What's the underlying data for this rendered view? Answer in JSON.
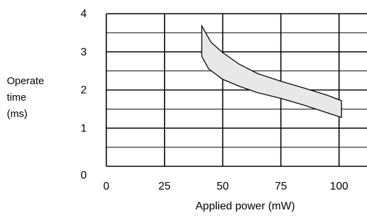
{
  "chart_data": {
    "type": "area",
    "title": "",
    "xlabel": "Applied power (mW)",
    "ylabel_lines": [
      "Operate",
      "time",
      "(ms)"
    ],
    "xlim": [
      0,
      112
    ],
    "ylim": [
      0,
      4
    ],
    "x_ticks": [
      "0",
      "25",
      "50",
      "75",
      "100"
    ],
    "y_ticks": [
      "0",
      "1",
      "2",
      "3",
      "4"
    ],
    "grid": true,
    "band": {
      "fill": "#e8e8e8",
      "upper": [
        [
          41,
          3.68
        ],
        [
          45,
          3.25
        ],
        [
          50,
          2.98
        ],
        [
          57,
          2.68
        ],
        [
          65,
          2.43
        ],
        [
          75,
          2.23
        ],
        [
          85,
          2.05
        ],
        [
          95,
          1.86
        ],
        [
          101,
          1.72
        ]
      ],
      "lower": [
        [
          41,
          2.88
        ],
        [
          44,
          2.55
        ],
        [
          50,
          2.28
        ],
        [
          57,
          2.1
        ],
        [
          65,
          1.93
        ],
        [
          75,
          1.78
        ],
        [
          85,
          1.6
        ],
        [
          95,
          1.4
        ],
        [
          101,
          1.28
        ]
      ]
    }
  }
}
